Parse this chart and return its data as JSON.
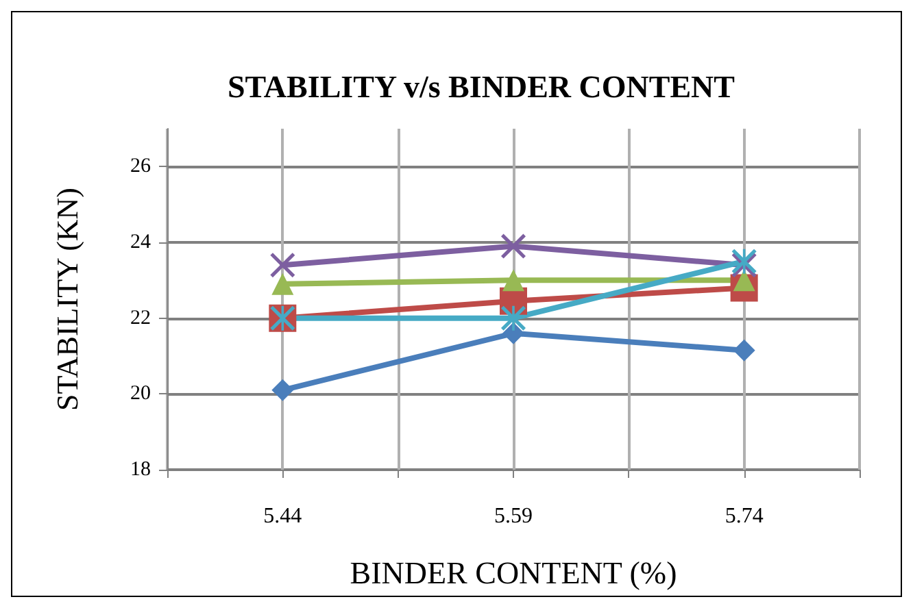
{
  "chart_data": {
    "type": "line",
    "title": "STABILITY v/s BINDER CONTENT",
    "xlabel": "BINDER CONTENT (%)",
    "ylabel": "STABILITY (KN)",
    "x": [
      5.44,
      5.59,
      5.74
    ],
    "xlim": [
      5.365,
      5.815
    ],
    "xticks": [
      {
        "value": 5.365,
        "label": null
      },
      5.44,
      {
        "value": 5.515,
        "label": null
      },
      5.59,
      {
        "value": 5.665,
        "label": null
      },
      5.74,
      {
        "value": 5.815,
        "label": null
      }
    ],
    "ylim": [
      18,
      27
    ],
    "yticks": [
      18,
      20,
      22,
      24,
      26
    ],
    "grid": true,
    "series": [
      {
        "color": "#4a7ebb",
        "marker": "diamond",
        "values": [
          20.1,
          21.6,
          21.15
        ]
      },
      {
        "color": "#be4b48",
        "marker": "square",
        "values": [
          22.0,
          22.45,
          22.8
        ]
      },
      {
        "color": "#98b954",
        "marker": "triangle",
        "values": [
          22.9,
          23.0,
          23.0
        ]
      },
      {
        "color": "#7d5fa0",
        "marker": "cross",
        "values": [
          23.4,
          23.9,
          23.4
        ]
      },
      {
        "color": "#46aac5",
        "marker": "star",
        "values": [
          22.0,
          22.0,
          23.5
        ]
      }
    ]
  }
}
